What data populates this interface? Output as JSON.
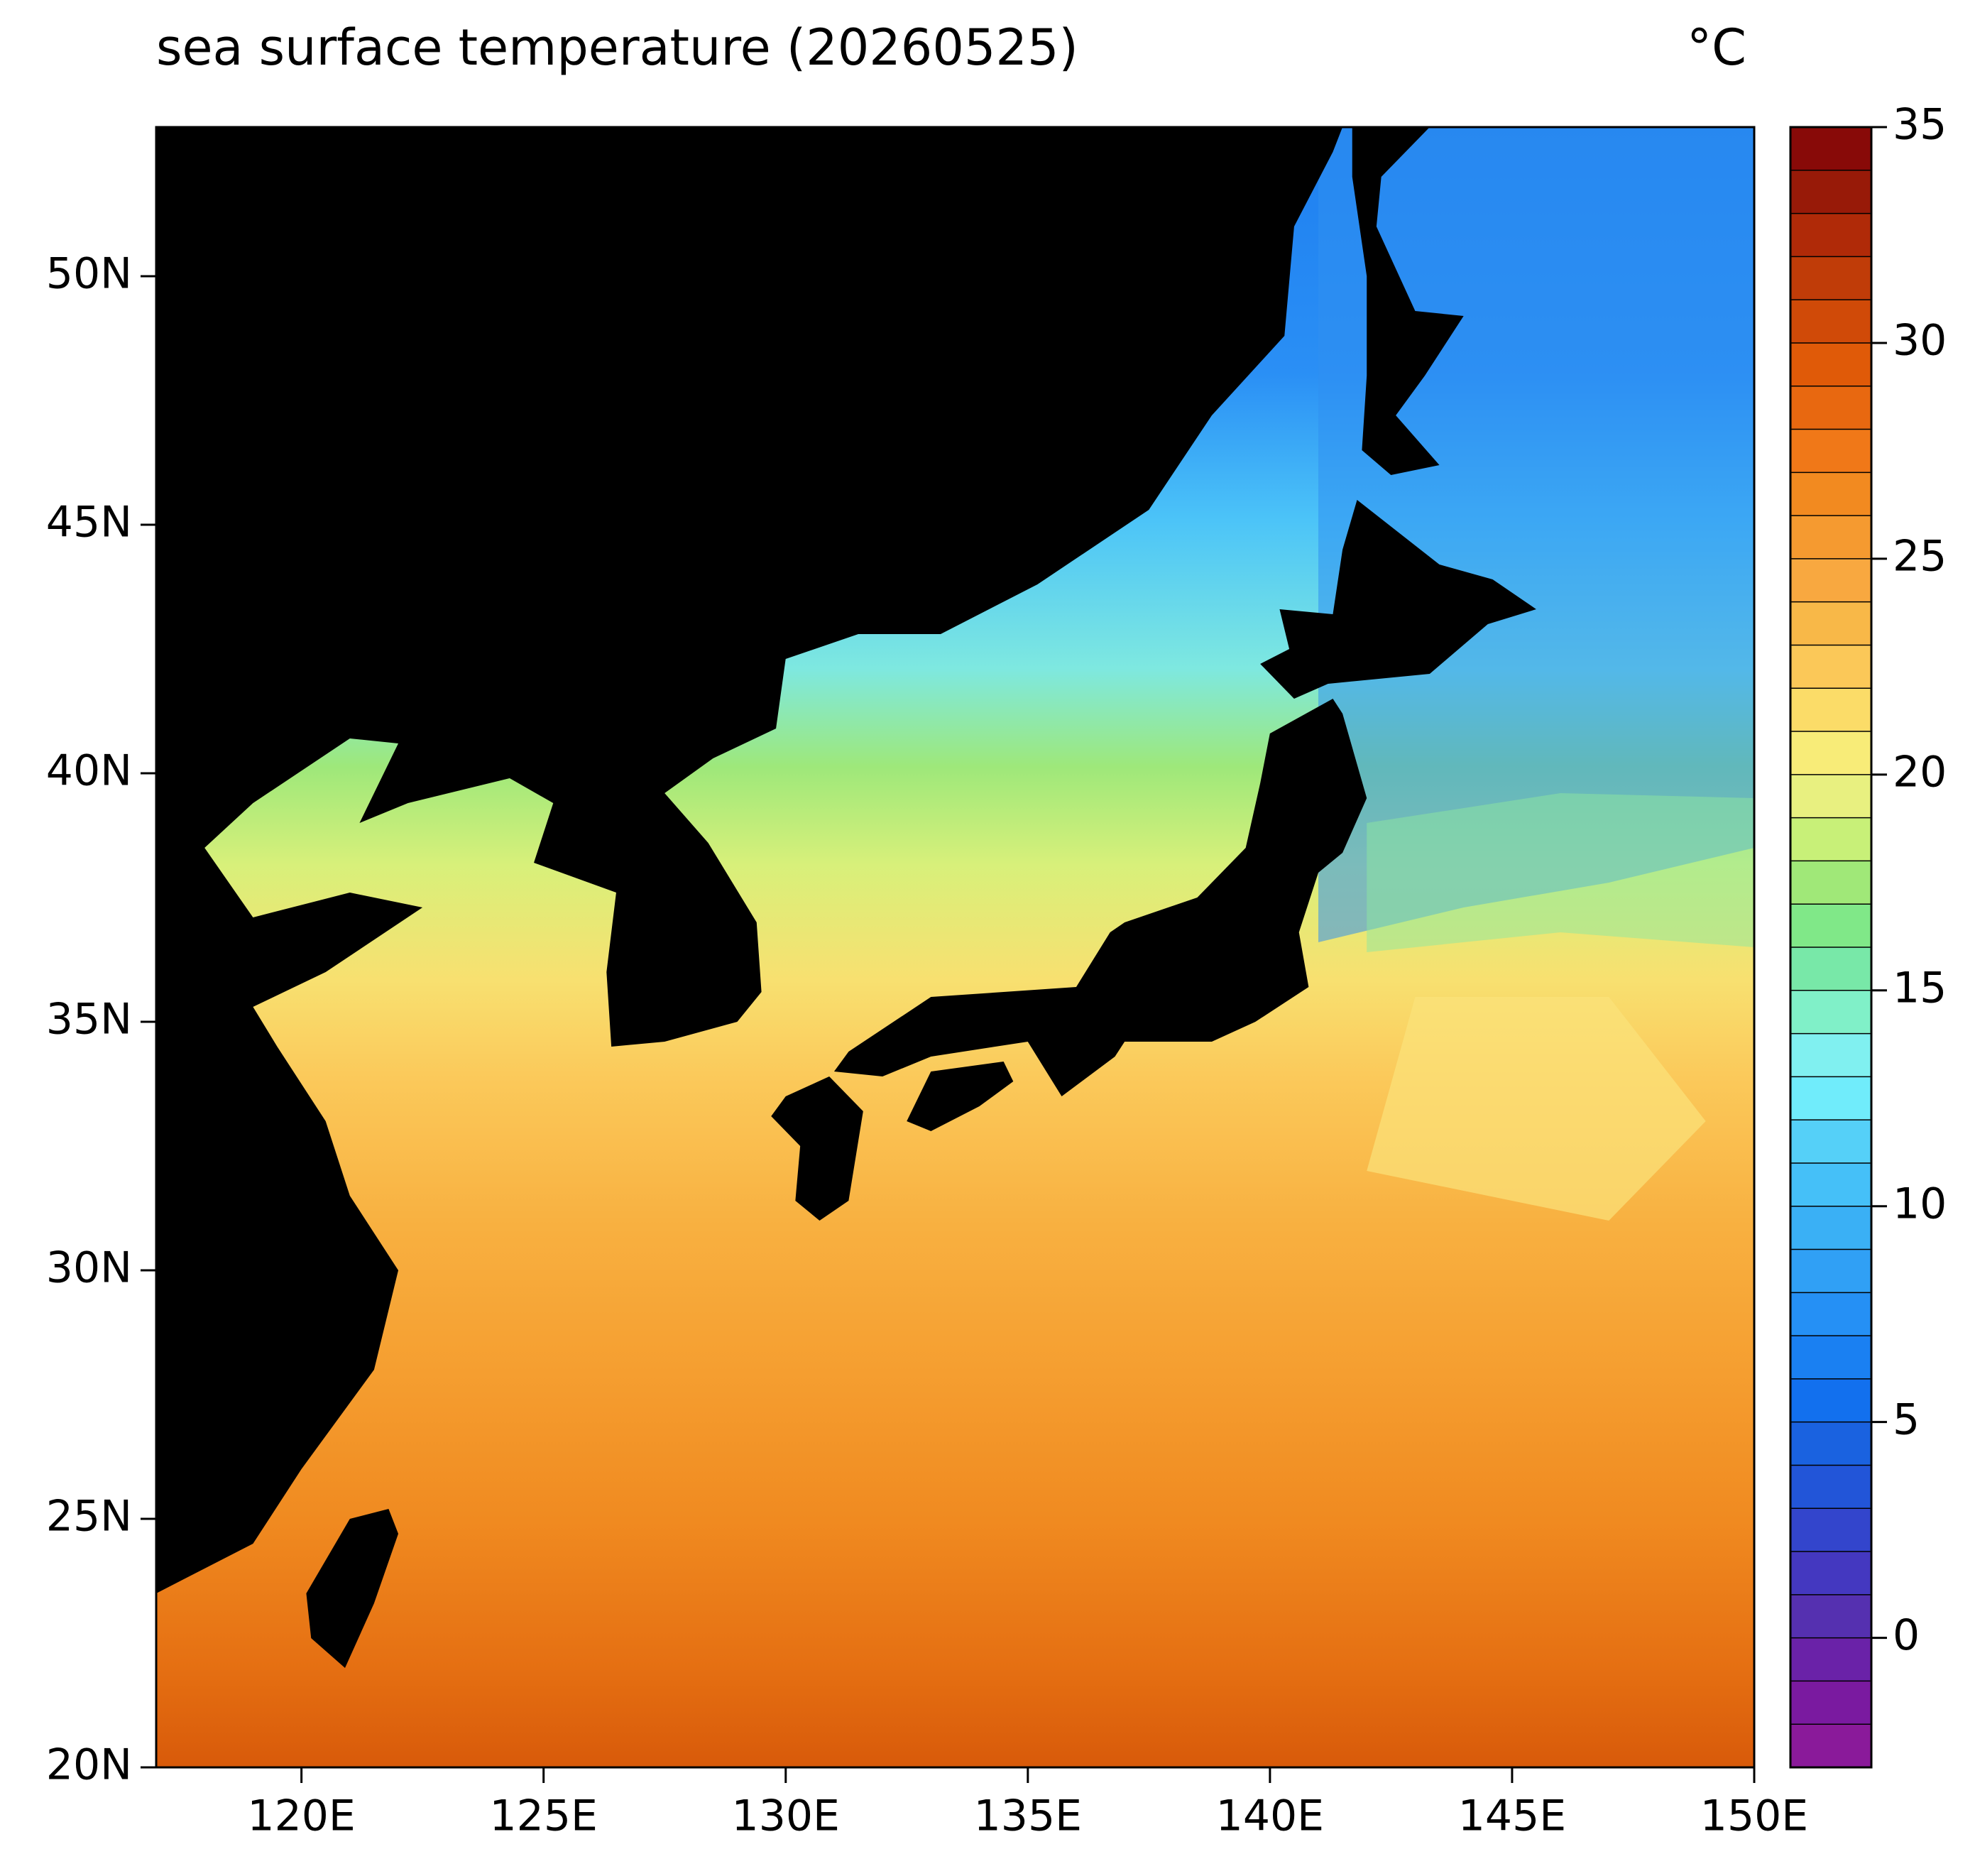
{
  "chart_data": {
    "type": "map",
    "title": "sea surface temperature (20260525)",
    "colorbar_label": "°C",
    "xlim": [
      117,
      150
    ],
    "ylim": [
      20,
      53
    ],
    "xticks": [
      {
        "value": 120,
        "label": "120E"
      },
      {
        "value": 125,
        "label": "125E"
      },
      {
        "value": 130,
        "label": "130E"
      },
      {
        "value": 135,
        "label": "135E"
      },
      {
        "value": 140,
        "label": "140E"
      },
      {
        "value": 145,
        "label": "145E"
      },
      {
        "value": 150,
        "label": "150E"
      }
    ],
    "yticks": [
      {
        "value": 20,
        "label": "20N"
      },
      {
        "value": 25,
        "label": "25N"
      },
      {
        "value": 30,
        "label": "30N"
      },
      {
        "value": 35,
        "label": "35N"
      },
      {
        "value": 40,
        "label": "40N"
      },
      {
        "value": 45,
        "label": "45N"
      },
      {
        "value": 50,
        "label": "50N"
      }
    ],
    "colorbar": {
      "clim": [
        -3,
        35
      ],
      "ticks": [
        0,
        5,
        10,
        15,
        20,
        25,
        30,
        35
      ],
      "colors": [
        "#8a1a9a",
        "#7a1aa0",
        "#6a22a8",
        "#5530b0",
        "#4438c0",
        "#3345cc",
        "#2255d8",
        "#1a62e0",
        "#1270ee",
        "#1a80f2",
        "#2590f5",
        "#30a0f5",
        "#3ab0f5",
        "#45c0f8",
        "#55d0f8",
        "#70ecfb",
        "#80f0f0",
        "#80f0c8",
        "#78e8a8",
        "#80e888",
        "#a0e878",
        "#c8f078",
        "#e8f080",
        "#f8ec78",
        "#fbdc68",
        "#fbc858",
        "#f8b848",
        "#f8a840",
        "#f59a30",
        "#f28a20",
        "#f07818",
        "#e86810",
        "#e05a08",
        "#d04a08",
        "#c03c08",
        "#b02a08",
        "#981a08",
        "#880a08"
      ]
    }
  }
}
